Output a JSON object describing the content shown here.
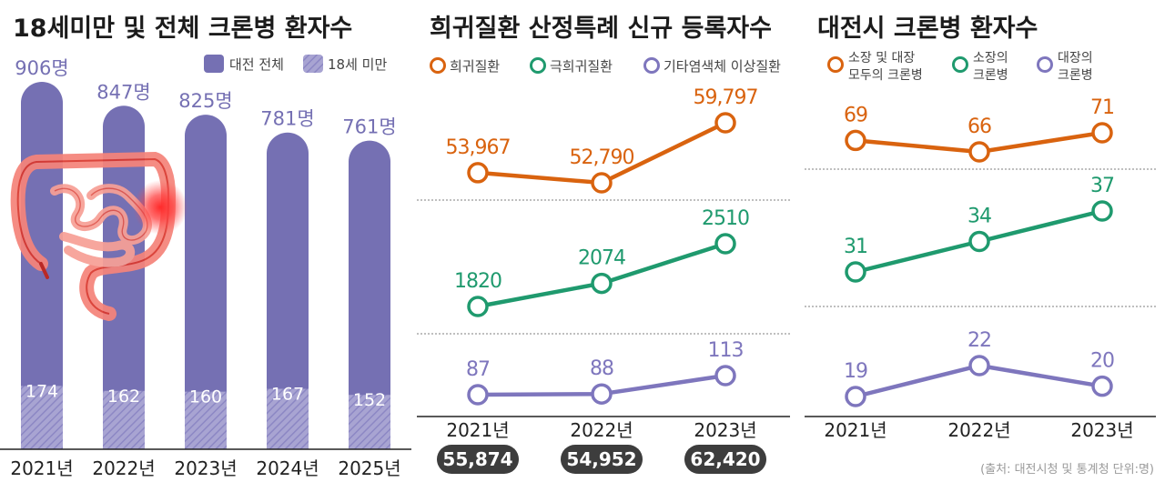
{
  "source_note": "(출처: 대전시청 및 통계청 단위:명)",
  "colors": {
    "bar": "#7570b3",
    "orange": "#d9630f",
    "green": "#1f9a6e",
    "purple": "#7e76bd",
    "pill": "#3d3d3d",
    "intestine": "#f06a5e"
  },
  "chart_data": [
    {
      "type": "bar",
      "title": "18세미만 및 전체 크론병 환자수",
      "categories": [
        "2021년",
        "2022년",
        "2023년",
        "2024년",
        "2025년"
      ],
      "series": [
        {
          "name": "대전 전체",
          "values": [
            906,
            847,
            825,
            781,
            761
          ],
          "labels": [
            "906명",
            "847명",
            "825명",
            "781명",
            "761명"
          ]
        },
        {
          "name": "18세 미만",
          "values": [
            174,
            162,
            160,
            167,
            152
          ],
          "labels": [
            "174",
            "162",
            "160",
            "167",
            "152"
          ]
        }
      ],
      "ylim": [
        0,
        906
      ],
      "legend": "top-right",
      "illustration": "intestine-icon"
    },
    {
      "type": "line",
      "title": "희귀질환 산정특례 신규 등록자수",
      "categories": [
        "2021년",
        "2022년",
        "2023년"
      ],
      "series": [
        {
          "name": "희귀질환",
          "values": [
            53967,
            52790,
            59797
          ],
          "labels": [
            "53,967",
            "52,790",
            "59,797"
          ]
        },
        {
          "name": "극희귀질환",
          "values": [
            1820,
            2074,
            2510
          ],
          "labels": [
            "1820",
            "2074",
            "2510"
          ]
        },
        {
          "name": "기타염색체 이상질환",
          "values": [
            87,
            88,
            113
          ],
          "labels": [
            "87",
            "88",
            "113"
          ]
        }
      ],
      "totals": [
        "55,874",
        "54,952",
        "62,420"
      ],
      "legend": "top"
    },
    {
      "type": "line",
      "title": "대전시 크론병 환자수",
      "categories": [
        "2021년",
        "2022년",
        "2023년"
      ],
      "series": [
        {
          "name": "소장 및 대장 모두의 크론병",
          "name_lines": [
            "소장 및 대장",
            "모두의 크론병"
          ],
          "values": [
            69,
            66,
            71
          ],
          "labels": [
            "69",
            "66",
            "71"
          ]
        },
        {
          "name": "소장의 크론병",
          "name_lines": [
            "소장의",
            "크론병"
          ],
          "values": [
            31,
            34,
            37
          ],
          "labels": [
            "31",
            "34",
            "37"
          ]
        },
        {
          "name": "대장의 크론병",
          "name_lines": [
            "대장의",
            "크론병"
          ],
          "values": [
            19,
            22,
            20
          ],
          "labels": [
            "19",
            "22",
            "20"
          ]
        }
      ],
      "legend": "top"
    }
  ]
}
